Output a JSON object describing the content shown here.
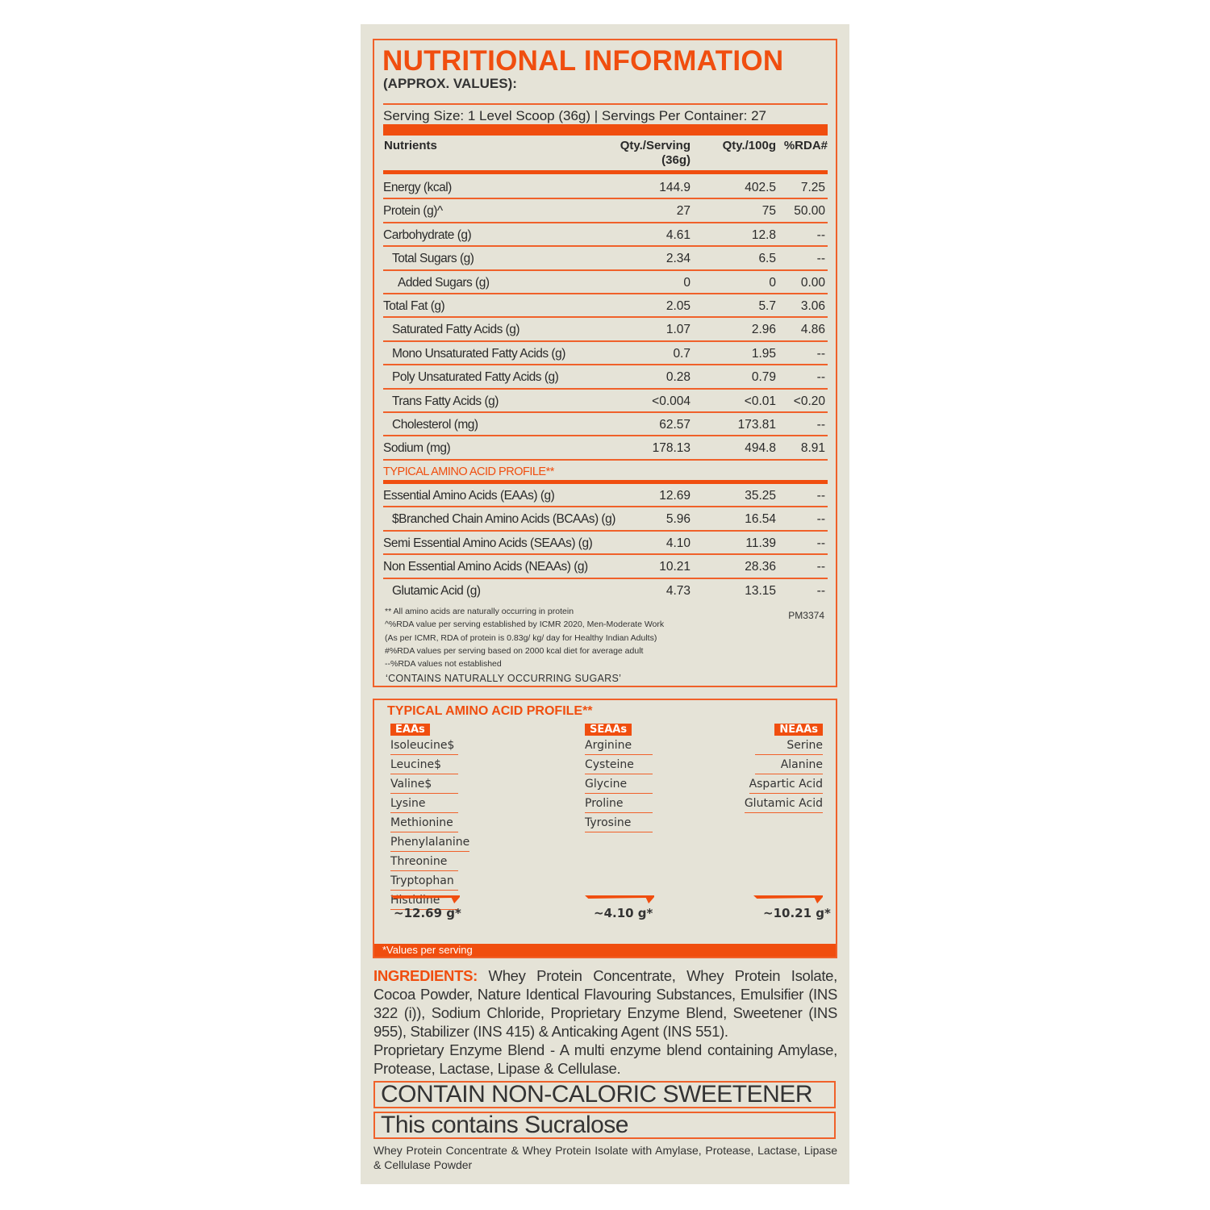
{
  "label": {
    "title": "NUTRITIONAL INFORMATION",
    "subtitle": "(APPROX. VALUES):",
    "serving": "Serving Size: 1 Level Scoop (36g) | Servings Per Container: 27",
    "headers": {
      "nutrients": "Nutrients",
      "serving": "Qty./Serving",
      "serving2": "(36g)",
      "per100": "Qty./100g",
      "rda": "%RDA#"
    },
    "rows": [
      {
        "n": "Energy (kcal)",
        "a": "144.9",
        "b": "402.5",
        "c": "7.25",
        "indent": 0
      },
      {
        "n": "Protein (g)^",
        "a": "27",
        "b": "75",
        "c": "50.00",
        "indent": 0
      },
      {
        "n": "Carbohydrate (g)",
        "a": "4.61",
        "b": "12.8",
        "c": "--",
        "indent": 0
      },
      {
        "n": "Total Sugars (g)",
        "a": "2.34",
        "b": "6.5",
        "c": "--",
        "indent": 1
      },
      {
        "n": "Added Sugars (g)",
        "a": "0",
        "b": "0",
        "c": "0.00",
        "indent": 2
      },
      {
        "n": "Total Fat (g)",
        "a": "2.05",
        "b": "5.7",
        "c": "3.06",
        "indent": 0
      },
      {
        "n": "Saturated Fatty Acids (g)",
        "a": "1.07",
        "b": "2.96",
        "c": "4.86",
        "indent": 1
      },
      {
        "n": "Mono Unsaturated Fatty Acids (g)",
        "a": "0.7",
        "b": "1.95",
        "c": "--",
        "indent": 1
      },
      {
        "n": "Poly Unsaturated Fatty Acids (g)",
        "a": "0.28",
        "b": "0.79",
        "c": "--",
        "indent": 1
      },
      {
        "n": "Trans Fatty Acids (g)",
        "a": "<0.004",
        "b": "<0.01",
        "c": "<0.20",
        "indent": 1
      },
      {
        "n": "Cholesterol (mg)",
        "a": "62.57",
        "b": "173.81",
        "c": "--",
        "indent": 1
      },
      {
        "n": "Sodium (mg)",
        "a": "178.13",
        "b": "494.8",
        "c": "8.91",
        "indent": 0
      },
      {
        "n": "TYPICAL AMINO ACID PROFILE**",
        "a": "",
        "b": "",
        "c": "",
        "indent": 0,
        "section": true
      },
      {
        "n": "Essential Amino Acids (EAAs) (g)",
        "a": "12.69",
        "b": "35.25",
        "c": "--",
        "indent": 0
      },
      {
        "n": "$Branched Chain Amino Acids (BCAAs) (g)",
        "a": "5.96",
        "b": "16.54",
        "c": "--",
        "indent": 1
      },
      {
        "n": "Semi Essential Amino Acids (SEAAs) (g)",
        "a": "4.10",
        "b": "11.39",
        "c": "--",
        "indent": 0
      },
      {
        "n": "Non Essential Amino Acids (NEAAs) (g)",
        "a": "10.21",
        "b": "28.36",
        "c": "--",
        "indent": 0
      },
      {
        "n": "Glutamic Acid (g)",
        "a": "4.73",
        "b": "13.15",
        "c": "--",
        "indent": 1
      }
    ],
    "notes": [
      "** All amino acids are naturally occurring in protein",
      "^%RDA value per serving established by ICMR 2020, Men-Moderate Work",
      "(As per ICMR, RDA of protein is 0.83g/ kg/ day  for Healthy Indian Adults)",
      "#%RDA values per serving based on 2000 kcal diet for average adult",
      "--%RDA values not established"
    ],
    "code": "PM3374",
    "sugars_note": "‘CONTAINS NATURALLY OCCURRING SUGARS’"
  },
  "amino": {
    "title": "TYPICAL AMINO ACID PROFILE**",
    "columns": [
      {
        "tag": "EAAs",
        "items": [
          "Isoleucine$",
          "Leucine$",
          "Valine$",
          "Lysine",
          "Methionine",
          "Phenylalanine",
          "Threonine",
          "Tryptophan",
          "Histidine"
        ],
        "total": "~12.69 g*"
      },
      {
        "tag": "SEAAs",
        "items": [
          "Arginine",
          "Cysteine",
          "Glycine",
          "Proline",
          "Tyrosine"
        ],
        "total": "~4.10 g*"
      },
      {
        "tag": "NEAAs",
        "items": [
          "Serine",
          "Alanine",
          "Aspartic Acid",
          "Glutamic Acid"
        ],
        "total": "~10.21 g*"
      }
    ],
    "footnote": "*Values per serving"
  },
  "ingredients": {
    "label": "INGREDIENTS:",
    "text": " Whey Protein Concentrate, Whey Protein Isolate, Cocoa Powder, Nature Identical Flavouring Substances, Emulsifier (INS 322 (i)), Sodium Chloride, Proprietary Enzyme Blend, Sweetener (INS 955), Stabilizer (INS 415) & Anticaking Agent (INS 551).",
    "enzyme": "Proprietary Enzyme Blend - A multi enzyme blend containing Amylase, Protease, Lactase, Lipase & Cellulase."
  },
  "warnings": [
    "CONTAIN NON-CALORIC SWEETENER",
    "This contains Sucralose"
  ],
  "footer": "Whey Protein Concentrate & Whey Protein Isolate with Amylase, Protease, Lactase, Lipase & Cellulase Powder",
  "colors": {
    "accent": "#f04e0f",
    "background": "#e5e3d7"
  }
}
